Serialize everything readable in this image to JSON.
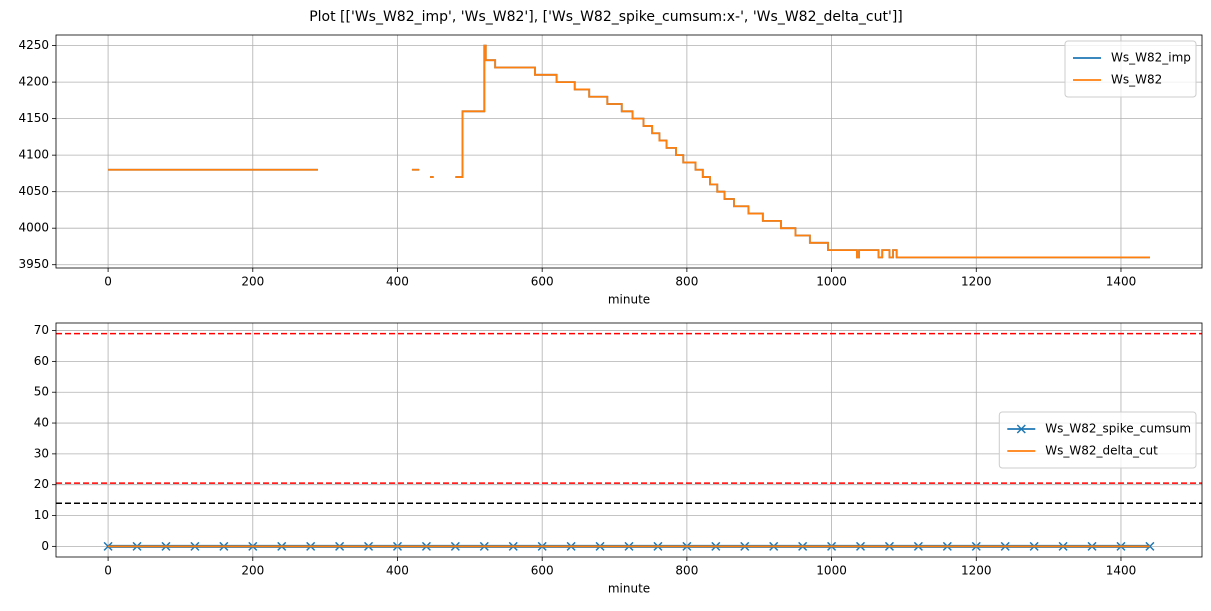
{
  "title": "Plot [['Ws_W82_imp', 'Ws_W82'], ['Ws_W82_spike_cumsum:x-', 'Ws_W82_delta_cut']]",
  "chart_data": [
    {
      "type": "line",
      "xlabel": "minute",
      "xlim": [
        -72,
        1512
      ],
      "ylim": [
        3945.5,
        4264.5
      ],
      "xticks": [
        0,
        200,
        400,
        600,
        800,
        1000,
        1200,
        1400
      ],
      "yticks": [
        3950,
        4000,
        4050,
        4100,
        4150,
        4200,
        4250
      ],
      "grid": true,
      "legend": "upper right",
      "series": [
        {
          "name": "Ws_W82_imp",
          "color": "#1f77b4",
          "x": [
            0,
            290,
            300,
            420,
            430,
            435,
            445,
            450,
            455,
            480,
            490,
            490,
            520,
            520,
            522,
            522,
            535,
            535,
            590,
            590,
            620,
            620,
            645,
            645,
            665,
            665,
            690,
            690,
            710,
            710,
            725,
            725,
            740,
            740,
            752,
            752,
            762,
            762,
            772,
            772,
            785,
            785,
            795,
            795,
            812,
            812,
            822,
            822,
            832,
            832,
            842,
            842,
            852,
            852,
            865,
            865,
            885,
            885,
            905,
            905,
            930,
            930,
            950,
            950,
            970,
            970,
            995,
            995,
            1035,
            1035,
            1038,
            1038,
            1065,
            1065,
            1070,
            1070,
            1080,
            1080,
            1085,
            1085,
            1090,
            1090,
            1440
          ],
          "values": [
            4080,
            4080,
            null,
            4080,
            4080,
            null,
            4070,
            4070,
            null,
            4070,
            4070,
            4160,
            4160,
            4250,
            4250,
            4230,
            4230,
            4220,
            4220,
            4210,
            4210,
            4200,
            4200,
            4190,
            4190,
            4180,
            4180,
            4170,
            4170,
            4160,
            4160,
            4150,
            4150,
            4140,
            4140,
            4130,
            4130,
            4120,
            4120,
            4110,
            4110,
            4100,
            4100,
            4090,
            4090,
            4080,
            4080,
            4070,
            4070,
            4060,
            4060,
            4050,
            4050,
            4040,
            4040,
            4030,
            4030,
            4020,
            4020,
            4010,
            4010,
            4000,
            4000,
            3990,
            3990,
            3980,
            3980,
            3970,
            3970,
            3960,
            3960,
            3970,
            3970,
            3960,
            3960,
            3970,
            3970,
            3960,
            3960,
            3970,
            3970,
            3960,
            3960
          ]
        },
        {
          "name": "Ws_W82",
          "color": "#ff7f0e",
          "x": [
            0,
            290,
            300,
            420,
            430,
            435,
            445,
            450,
            455,
            480,
            490,
            490,
            520,
            520,
            522,
            522,
            535,
            535,
            590,
            590,
            620,
            620,
            645,
            645,
            665,
            665,
            690,
            690,
            710,
            710,
            725,
            725,
            740,
            740,
            752,
            752,
            762,
            762,
            772,
            772,
            785,
            785,
            795,
            795,
            812,
            812,
            822,
            822,
            832,
            832,
            842,
            842,
            852,
            852,
            865,
            865,
            885,
            885,
            905,
            905,
            930,
            930,
            950,
            950,
            970,
            970,
            995,
            995,
            1035,
            1035,
            1038,
            1038,
            1065,
            1065,
            1070,
            1070,
            1080,
            1080,
            1085,
            1085,
            1090,
            1090,
            1440
          ],
          "values": [
            4080,
            4080,
            null,
            4080,
            4080,
            null,
            4070,
            4070,
            null,
            4070,
            4070,
            4160,
            4160,
            4250,
            4250,
            4230,
            4230,
            4220,
            4220,
            4210,
            4210,
            4200,
            4200,
            4190,
            4190,
            4180,
            4180,
            4170,
            4170,
            4160,
            4160,
            4150,
            4150,
            4140,
            4140,
            4130,
            4130,
            4120,
            4120,
            4110,
            4110,
            4100,
            4100,
            4090,
            4090,
            4080,
            4080,
            4070,
            4070,
            4060,
            4060,
            4050,
            4050,
            4040,
            4040,
            4030,
            4030,
            4020,
            4020,
            4010,
            4010,
            4000,
            4000,
            3990,
            3990,
            3980,
            3980,
            3970,
            3970,
            3960,
            3960,
            3970,
            3970,
            3960,
            3960,
            3970,
            3970,
            3960,
            3960,
            3970,
            3970,
            3960,
            3960
          ]
        }
      ]
    },
    {
      "type": "line",
      "xlabel": "minute",
      "xlim": [
        -72,
        1512
      ],
      "ylim": [
        -3.45,
        72.45
      ],
      "xticks": [
        0,
        200,
        400,
        600,
        800,
        1000,
        1200,
        1400
      ],
      "yticks": [
        0,
        10,
        20,
        30,
        40,
        50,
        60,
        70
      ],
      "grid": true,
      "legend": "center right",
      "hlines": [
        {
          "value": 69,
          "color": "red"
        },
        {
          "value": 20.5,
          "color": "red"
        },
        {
          "value": 14,
          "color": "black"
        }
      ],
      "series": [
        {
          "name": "Ws_W82_spike_cumsum",
          "color": "#1f77b4",
          "marker": "x",
          "x": [
            0,
            40,
            80,
            120,
            160,
            200,
            240,
            280,
            320,
            360,
            400,
            440,
            480,
            520,
            560,
            600,
            640,
            680,
            720,
            760,
            800,
            840,
            880,
            920,
            960,
            1000,
            1040,
            1080,
            1120,
            1160,
            1200,
            1240,
            1280,
            1320,
            1360,
            1400,
            1440
          ],
          "values": [
            0,
            0,
            0,
            0,
            0,
            0,
            0,
            0,
            0,
            0,
            0,
            0,
            0,
            0,
            0,
            0,
            0,
            0,
            0,
            0,
            0,
            0,
            0,
            0,
            0,
            0,
            0,
            0,
            0,
            0,
            0,
            0,
            0,
            0,
            0,
            0,
            0
          ]
        },
        {
          "name": "Ws_W82_delta_cut",
          "color": "#ff7f0e",
          "x": [
            0,
            1440
          ],
          "values": [
            0,
            0
          ]
        }
      ]
    }
  ]
}
